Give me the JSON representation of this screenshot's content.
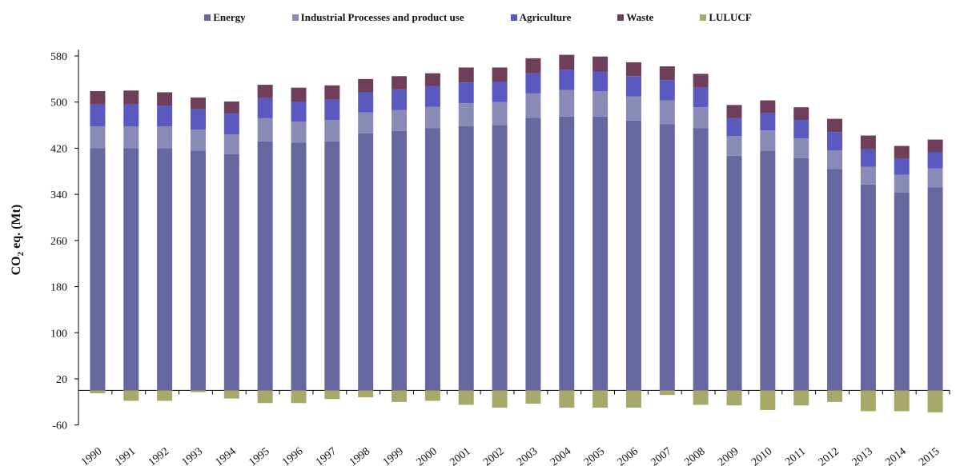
{
  "chart_data": {
    "type": "bar",
    "stacked": true,
    "title": "",
    "xlabel": "",
    "ylabel": {
      "main": "CO",
      "sub": "2",
      "rest": " eq. (Mt)"
    },
    "ylim": [
      -60,
      600
    ],
    "yticks": [
      "580",
      "500",
      "420",
      "340",
      "260",
      "180",
      "100",
      "20",
      "-60"
    ],
    "grid": false,
    "legend_position": "top",
    "categories": [
      "1990",
      "1991",
      "1992",
      "1993",
      "1994",
      "1995",
      "1996",
      "1997",
      "1998",
      "1999",
      "2000",
      "2001",
      "2002",
      "2003",
      "2004",
      "2005",
      "2006",
      "2007",
      "2008",
      "2009",
      "2010",
      "2011",
      "2012",
      "2013",
      "2014",
      "2015"
    ],
    "series": [
      {
        "name": "Energy",
        "color": "#6767a0",
        "values": [
          420,
          420,
          420,
          416,
          410,
          432,
          430,
          432,
          446,
          450,
          455,
          458,
          460,
          473,
          475,
          475,
          468,
          462,
          455,
          407,
          415,
          403,
          384,
          357,
          343,
          352
        ]
      },
      {
        "name": "Industrial Processes and product use",
        "color": "#8a8ab6",
        "values": [
          38,
          38,
          38,
          36,
          34,
          40,
          36,
          37,
          36,
          36,
          37,
          40,
          40,
          42,
          46,
          44,
          42,
          41,
          36,
          34,
          36,
          34,
          32,
          31,
          31,
          33
        ]
      },
      {
        "name": "Agriculture",
        "color": "#5959c0",
        "values": [
          38,
          38,
          36,
          36,
          36,
          35,
          35,
          35,
          35,
          36,
          36,
          36,
          35,
          35,
          35,
          34,
          35,
          35,
          34,
          31,
          30,
          32,
          32,
          30,
          28,
          28
        ]
      },
      {
        "name": "Waste",
        "color": "#6e3e5a",
        "values": [
          23,
          24,
          23,
          20,
          21,
          23,
          24,
          25,
          23,
          23,
          22,
          26,
          25,
          26,
          26,
          26,
          24,
          24,
          24,
          23,
          22,
          22,
          23,
          24,
          22,
          22
        ]
      },
      {
        "name": "LULUCF",
        "color": "#a8a86a",
        "values": [
          -5,
          -18,
          -18,
          -3,
          -14,
          -22,
          -22,
          -15,
          -12,
          -20,
          -18,
          -25,
          -30,
          -23,
          -30,
          -30,
          -30,
          -8,
          -25,
          -26,
          -34,
          -26,
          -20,
          -36,
          -36,
          -38
        ]
      }
    ]
  }
}
